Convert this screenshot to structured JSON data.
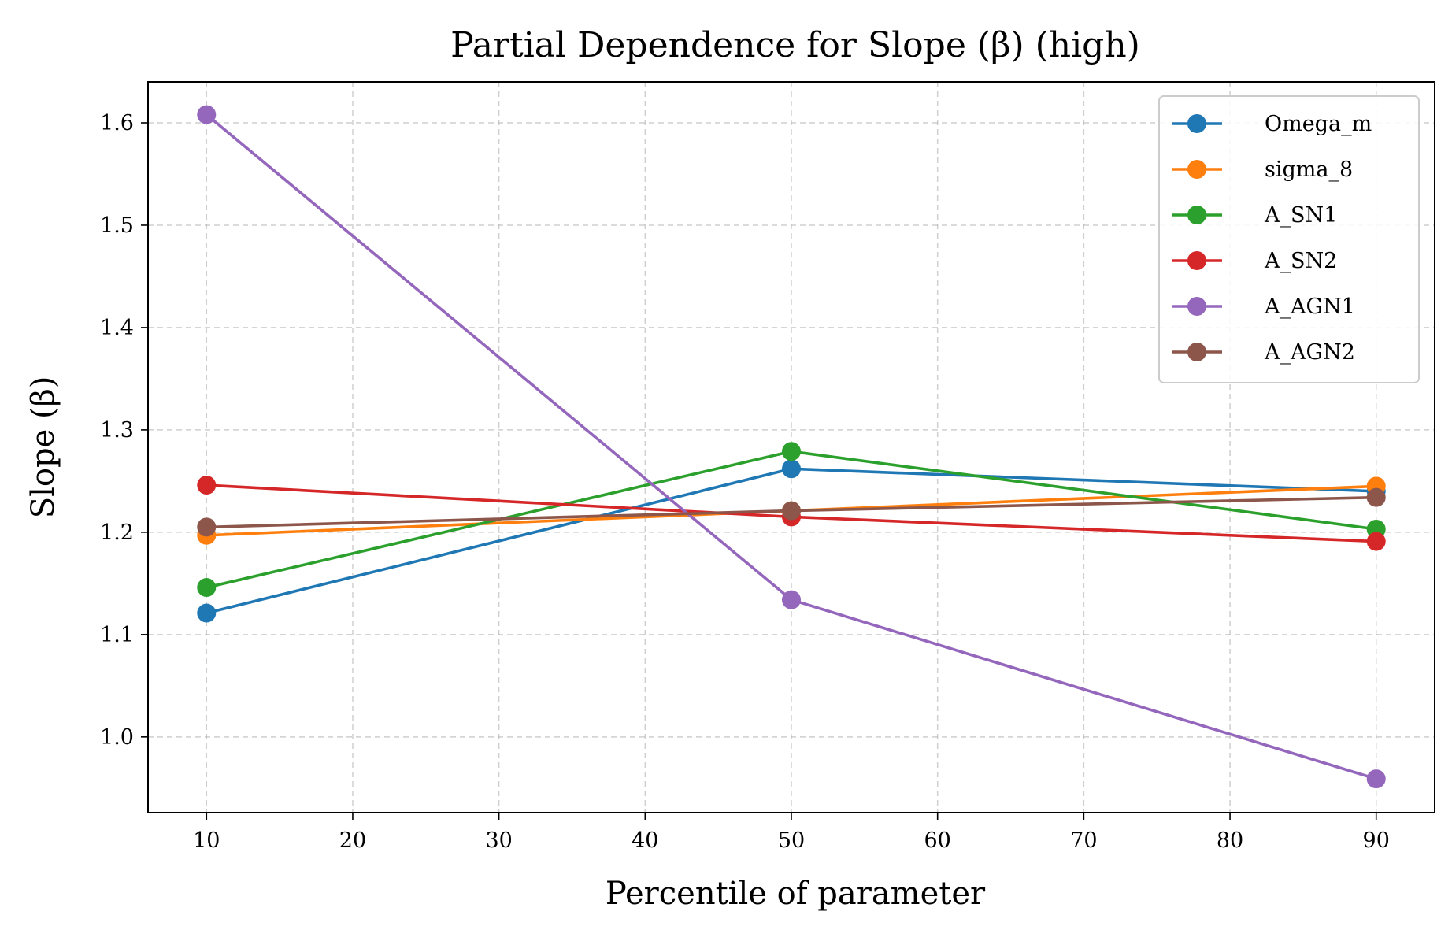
{
  "chart_data": {
    "type": "line",
    "title": "Partial Dependence for Slope (β) (high)",
    "xlabel": "Percentile of parameter",
    "ylabel": "Slope (β)",
    "x": [
      10,
      50,
      90
    ],
    "xlim": [
      6,
      94
    ],
    "ylim": [
      0.926,
      1.64
    ],
    "xticks": [
      10,
      20,
      30,
      40,
      50,
      60,
      70,
      80,
      90
    ],
    "yticks": [
      1.0,
      1.1,
      1.2,
      1.3,
      1.4,
      1.5,
      1.6
    ],
    "xtick_labels": [
      "10",
      "20",
      "30",
      "40",
      "50",
      "60",
      "70",
      "80",
      "90"
    ],
    "ytick_labels": [
      "1.0",
      "1.1",
      "1.2",
      "1.3",
      "1.4",
      "1.5",
      "1.6"
    ],
    "grid": true,
    "legend_position": "top-right",
    "series": [
      {
        "name": "Omega_m",
        "color": "#1f77b4",
        "values": [
          1.121,
          1.262,
          1.24
        ]
      },
      {
        "name": "sigma_8",
        "color": "#ff7f0e",
        "values": [
          1.197,
          1.221,
          1.245
        ]
      },
      {
        "name": "A_SN1",
        "color": "#2ca02c",
        "values": [
          1.146,
          1.279,
          1.203
        ]
      },
      {
        "name": "A_SN2",
        "color": "#d62728",
        "values": [
          1.246,
          1.215,
          1.191
        ]
      },
      {
        "name": "A_AGN1",
        "color": "#9467bd",
        "values": [
          1.608,
          1.134,
          0.959
        ]
      },
      {
        "name": "A_AGN2",
        "color": "#8c564b",
        "values": [
          1.205,
          1.221,
          1.234
        ]
      }
    ]
  }
}
